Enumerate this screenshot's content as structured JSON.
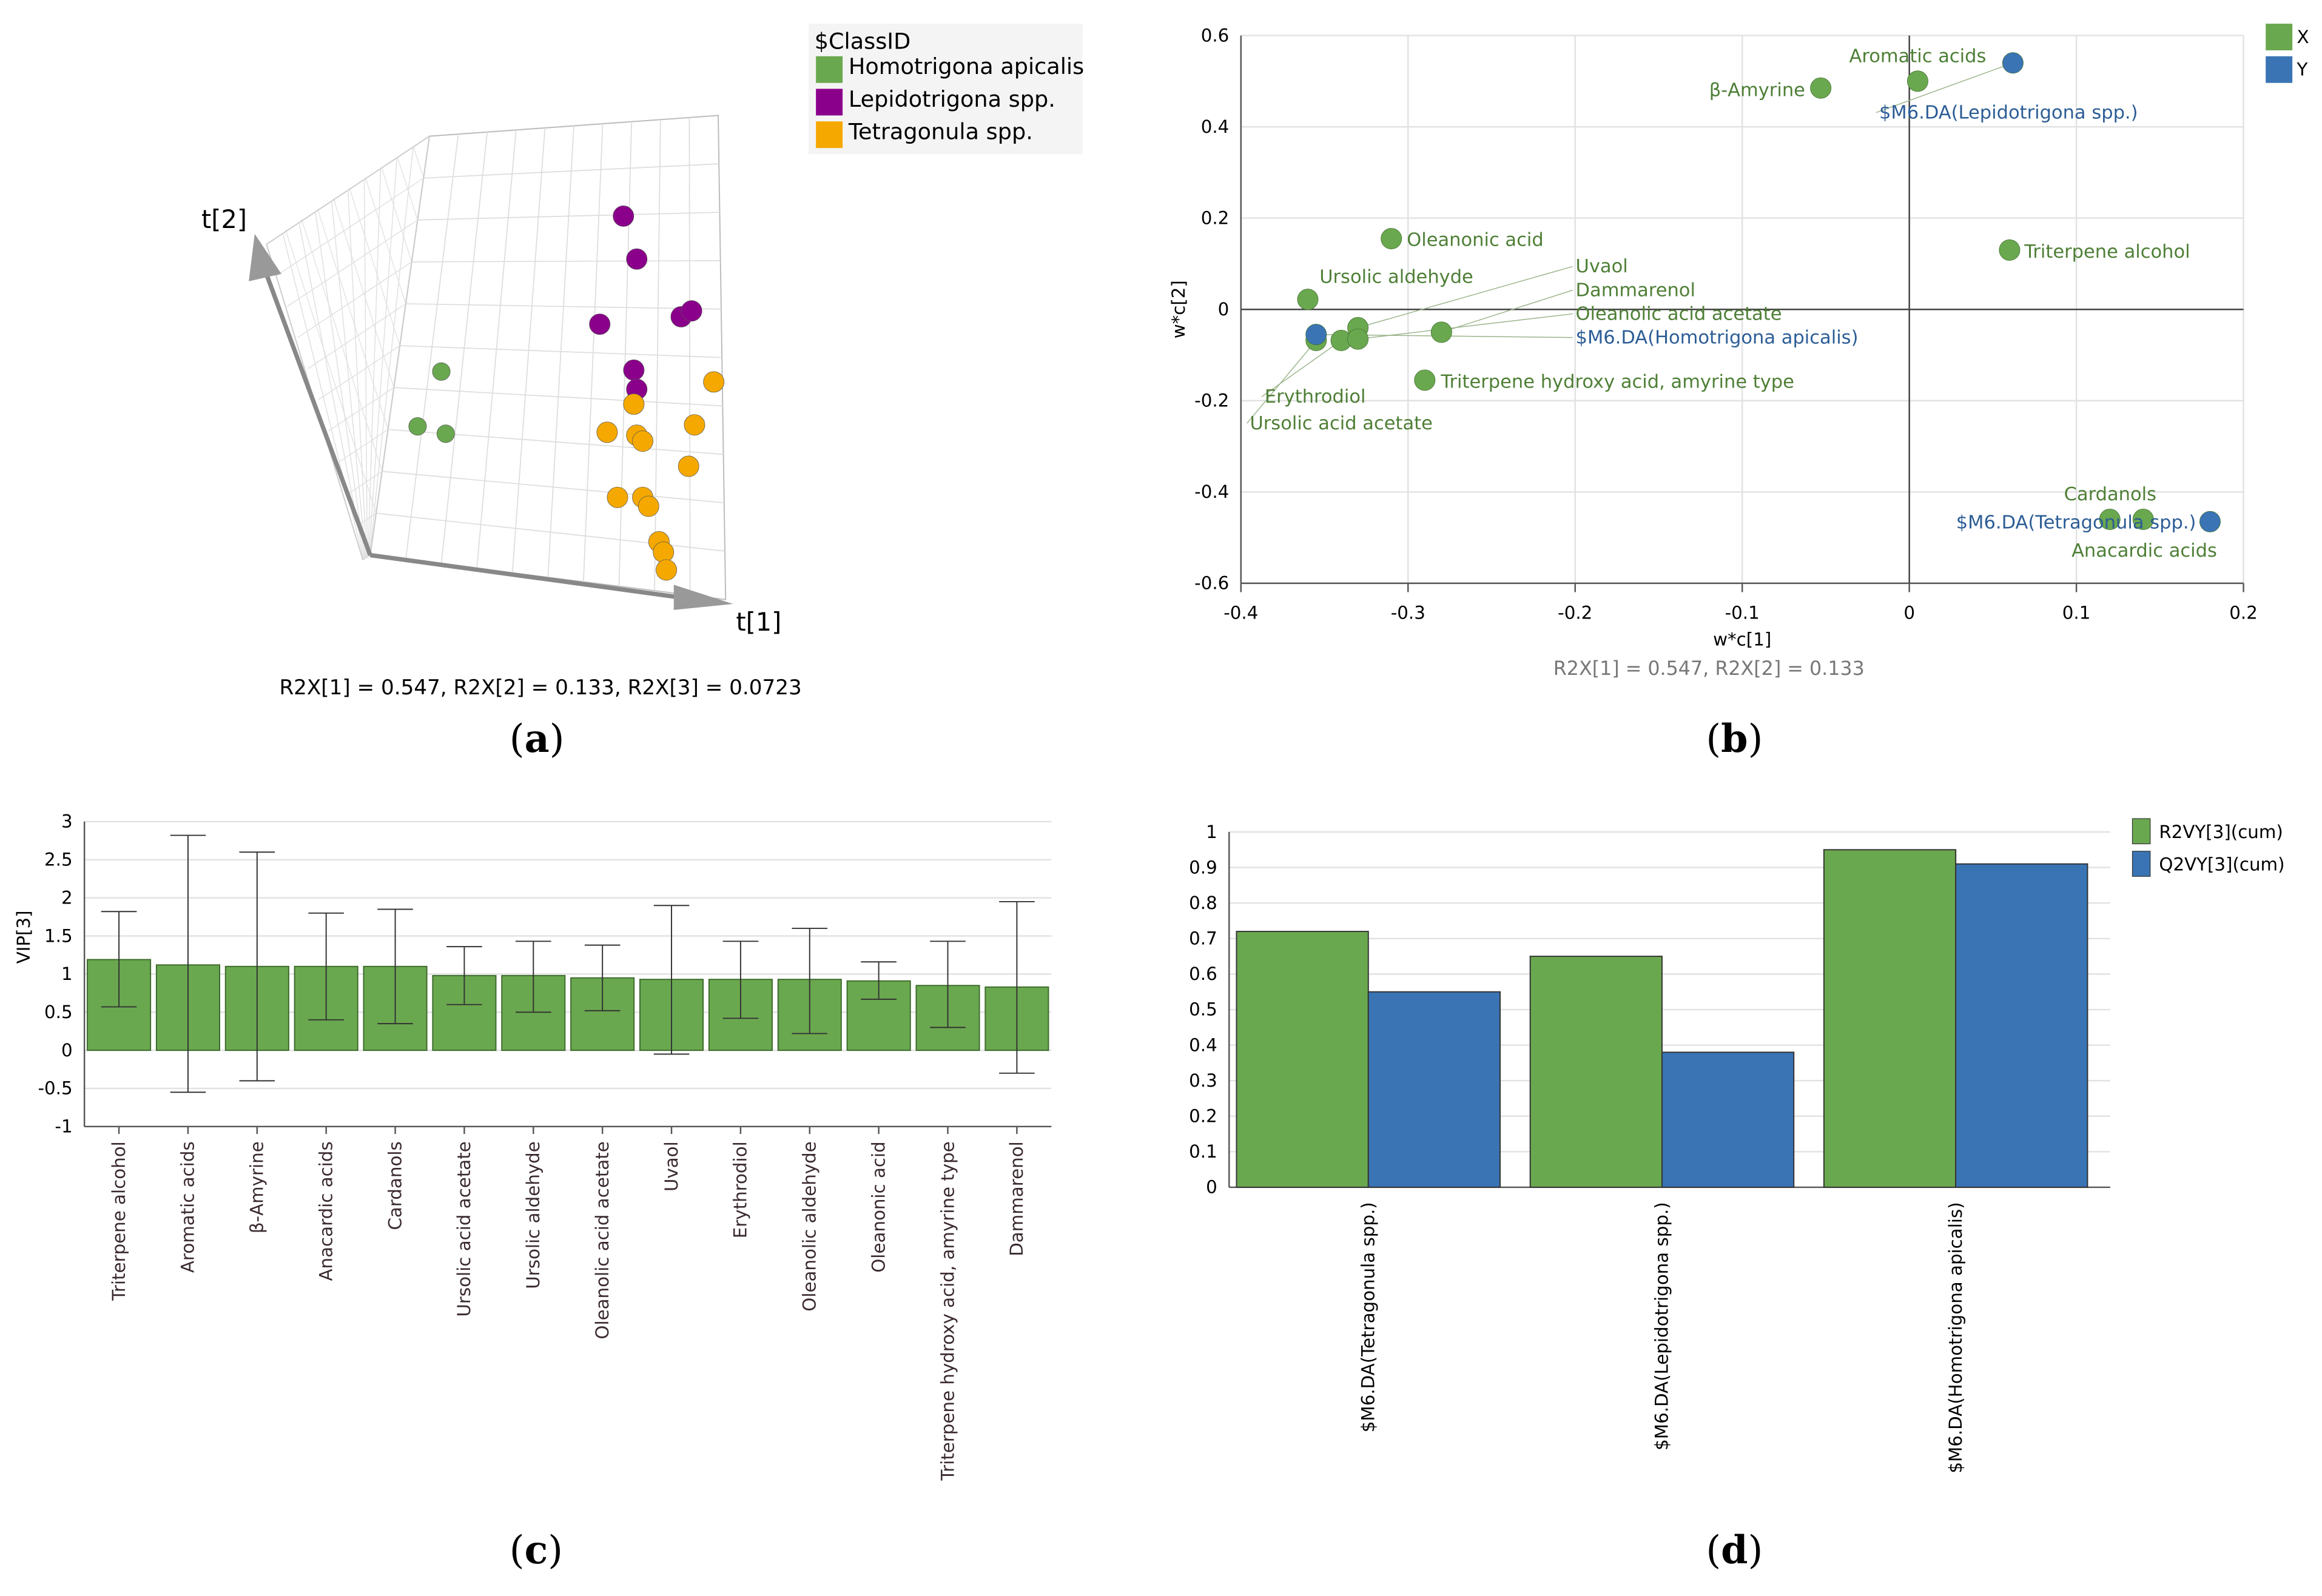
{
  "panel_labels": {
    "a": "a",
    "b": "b",
    "c": "c",
    "d": "d"
  },
  "chart_data": [
    {
      "type": "scatter",
      "panel": "a",
      "title": "",
      "axis_labels": {
        "t1": "t[1]",
        "t2": "t[2]"
      },
      "caption": "R2X[1] = 0.547, R2X[2] = 0.133, R2X[3] = 0.0723",
      "legend": {
        "title": "$ClassID",
        "entries": [
          {
            "name": "Homotrigona apicalis",
            "color": "#6aa84f",
            "count": 3
          },
          {
            "name": "Lepidotrigona spp.",
            "color": "#8b008b",
            "count": 7
          },
          {
            "name": "Tetragonula spp.",
            "color": "#f5a800",
            "count": 13
          }
        ]
      }
    },
    {
      "type": "scatter",
      "panel": "b",
      "xlabel": "w*c[1]",
      "ylabel": "w*c[2]",
      "caption": "R2X[1] = 0.547, R2X[2] = 0.133",
      "xlim": [
        -0.4,
        0.2
      ],
      "ylim": [
        -0.6,
        0.6
      ],
      "xticks": [
        "-0.4",
        "-0.3",
        "-0.2",
        "-0.1",
        "0",
        "0.1",
        "0.2"
      ],
      "yticks": [
        "-0.6",
        "-0.4",
        "-0.2",
        "0",
        "0.2",
        "0.4",
        "0.6"
      ],
      "legend": [
        {
          "name": "X",
          "color": "#6aa84f"
        },
        {
          "name": "Y",
          "color": "#3a74b4"
        }
      ],
      "points": [
        {
          "label": "Aromatic acids",
          "x": 0.005,
          "y": 0.5,
          "series": "X",
          "pos": "above"
        },
        {
          "label": "β-Amyrine",
          "x": -0.053,
          "y": 0.485,
          "series": "X",
          "pos": "left"
        },
        {
          "label": "$M6.DA(Lepidotrigona spp.)",
          "x": 0.062,
          "y": 0.54,
          "series": "Y",
          "pos": "below-left"
        },
        {
          "label": "Oleanonic acid",
          "x": -0.31,
          "y": 0.155,
          "series": "X",
          "pos": "right"
        },
        {
          "label": "Triterpene alcohol",
          "x": 0.06,
          "y": 0.13,
          "series": "X",
          "pos": "right"
        },
        {
          "label": "Ursolic aldehyde",
          "x": -0.36,
          "y": 0.022,
          "series": "X",
          "pos": "above-right"
        },
        {
          "label": "Uvaol",
          "x": -0.33,
          "y": -0.04,
          "series": "X",
          "pos": "above-left"
        },
        {
          "label": "Dammarenol",
          "x": -0.28,
          "y": -0.05,
          "series": "X",
          "pos": "above-left"
        },
        {
          "label": "Ursolic acid acetate",
          "x": -0.355,
          "y": -0.068,
          "series": "X",
          "pos": "left"
        },
        {
          "label": "Erythrodiol",
          "x": -0.34,
          "y": -0.068,
          "series": "X",
          "pos": "below"
        },
        {
          "label": "Oleanolic acid acetate",
          "x": -0.33,
          "y": -0.065,
          "series": "X",
          "pos": "right"
        },
        {
          "label": "$M6.DA(Homotrigona apicalis)",
          "x": -0.355,
          "y": -0.055,
          "series": "Y",
          "pos": "right"
        },
        {
          "label": "Triterpene hydroxy acid, amyrine type",
          "x": -0.29,
          "y": -0.155,
          "series": "X",
          "pos": "right"
        },
        {
          "label": "Cardanols",
          "x": 0.12,
          "y": -0.46,
          "series": "X",
          "pos": "above"
        },
        {
          "label": "Anacardic acids",
          "x": 0.14,
          "y": -0.46,
          "series": "X",
          "pos": "below"
        },
        {
          "label": "$M6.DA(Tetragonula spp.)",
          "x": 0.18,
          "y": -0.465,
          "series": "Y",
          "pos": "left"
        }
      ]
    },
    {
      "type": "bar",
      "panel": "c",
      "ylabel": "VIP[3]",
      "ylim": [
        -1,
        3
      ],
      "yticks": [
        "-1",
        "-0.5",
        "0",
        "0.5",
        "1",
        "1.5",
        "2",
        "2.5",
        "3"
      ],
      "color": "#6aa84f",
      "categories": [
        "Triterpene alcohol",
        "Aromatic acids",
        "β-Amyrine",
        "Anacardic acids",
        "Cardanols",
        "Ursolic acid acetate",
        "Ursolic aldehyde",
        "Oleanolic acid acetate",
        "Uvaol",
        "Erythrodiol",
        "Oleanolic aldehyde",
        "Oleanonic acid",
        "Triterpene hydroxy acid, amyrine type",
        "Dammarenol"
      ],
      "values": [
        1.19,
        1.12,
        1.1,
        1.1,
        1.1,
        0.98,
        0.98,
        0.95,
        0.93,
        0.93,
        0.93,
        0.91,
        0.85,
        0.83
      ],
      "err_low": [
        0.57,
        -0.55,
        -0.4,
        0.4,
        0.35,
        0.6,
        0.5,
        0.52,
        -0.05,
        0.42,
        0.22,
        0.67,
        0.3,
        -0.3
      ],
      "err_high": [
        1.82,
        2.82,
        2.6,
        1.8,
        1.85,
        1.36,
        1.43,
        1.38,
        1.9,
        1.43,
        1.6,
        1.16,
        1.43,
        1.95
      ]
    },
    {
      "type": "bar",
      "panel": "d",
      "ylim": [
        0,
        1
      ],
      "yticks": [
        "0",
        "0.1",
        "0.2",
        "0.3",
        "0.4",
        "0.5",
        "0.6",
        "0.7",
        "0.8",
        "0.9",
        "1"
      ],
      "categories": [
        "$M6.DA(Tetragonula spp.)",
        "$M6.DA(Lepidotrigona spp.)",
        "$M6.DA(Homotrigona apicalis)"
      ],
      "series": [
        {
          "name": "R2VY[3](cum)",
          "color": "#6aa84f",
          "values": [
            0.72,
            0.65,
            0.95
          ]
        },
        {
          "name": "Q2VY[3](cum)",
          "color": "#3a74b4",
          "values": [
            0.55,
            0.38,
            0.91
          ]
        }
      ]
    }
  ]
}
